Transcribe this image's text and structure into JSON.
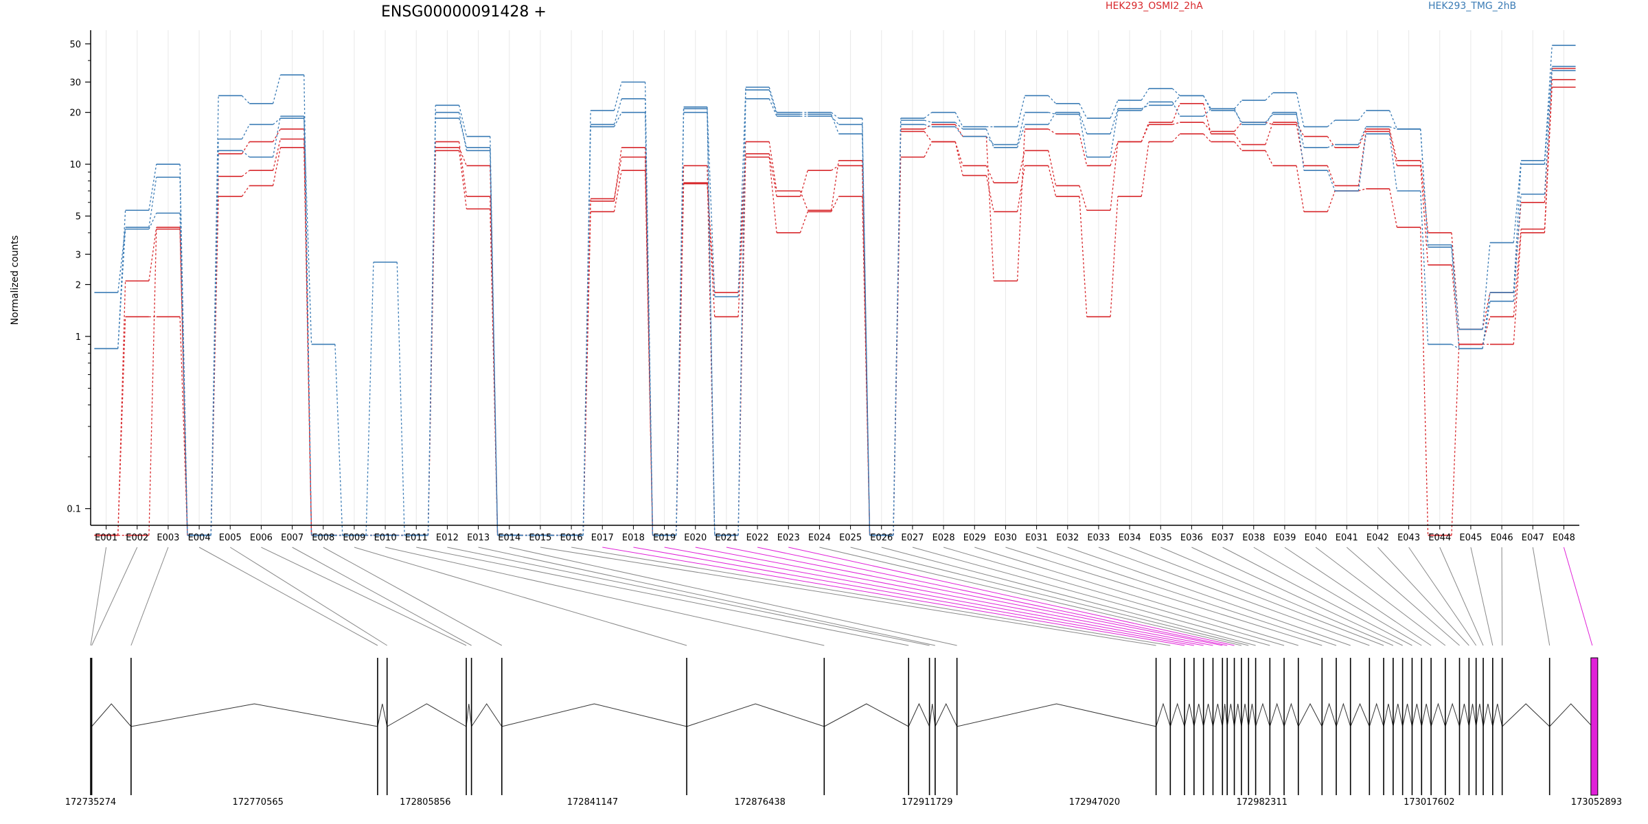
{
  "chart_data": {
    "type": "line",
    "title": "ENSG00000091428 +",
    "ylabel": "Normalized counts",
    "yscale": "log",
    "ylim": [
      0.08,
      60
    ],
    "yticks": [
      {
        "value": 0.1,
        "label": "0.1"
      },
      {
        "value": 1,
        "label": "1"
      },
      {
        "value": 2,
        "label": "2"
      },
      {
        "value": 3,
        "label": "3"
      },
      {
        "value": 5,
        "label": "5"
      },
      {
        "value": 10,
        "label": "10"
      },
      {
        "value": 20,
        "label": "20"
      },
      {
        "value": 30,
        "label": "30"
      },
      {
        "value": 50,
        "label": "50"
      }
    ],
    "minor_yticks": [
      0.2,
      0.3,
      0.4,
      0.5,
      0.6,
      0.7,
      0.8,
      0.9,
      4,
      6,
      7,
      8,
      9,
      40
    ],
    "grid": "vertical-per-exon",
    "legend": [
      {
        "label": "HEK293_OSMI2_2hA",
        "color": "#d7262a",
        "position": "top-center"
      },
      {
        "label": "HEK293_TMG_2hB",
        "color": "#3a7bb5",
        "position": "top-right"
      }
    ],
    "categories": [
      "E001",
      "E002",
      "E003",
      "E004",
      "E005",
      "E006",
      "E007",
      "E008",
      "E009",
      "E010",
      "E011",
      "E012",
      "E013",
      "E014",
      "E015",
      "E016",
      "E017",
      "E018",
      "E019",
      "E020",
      "E021",
      "E022",
      "E023",
      "E024",
      "E025",
      "E026",
      "E027",
      "E028",
      "E029",
      "E030",
      "E031",
      "E032",
      "E033",
      "E034",
      "E035",
      "E036",
      "E037",
      "E038",
      "E039",
      "E040",
      "E041",
      "E042",
      "E043",
      "E044",
      "E045",
      "E046",
      "E047",
      "E048"
    ],
    "series": [
      {
        "group": "HEK293_OSMI2_2hA",
        "color": "#d7262a",
        "values": [
          0.07,
          1.3,
          1.3,
          0.07,
          6.5,
          7.5,
          12.5,
          0.07,
          0.07,
          0.07,
          0.07,
          12,
          5.5,
          0.07,
          0.07,
          0.07,
          5.3,
          9.2,
          0.07,
          7.8,
          1.3,
          11,
          4,
          5.3,
          6.5,
          0.07,
          11,
          13.5,
          8.6,
          5.3,
          9.8,
          6.5,
          1.3,
          6.5,
          13.5,
          15,
          13.5,
          12,
          9.8,
          5.3,
          7,
          7.2,
          4.3,
          0.07,
          0.9,
          0.9,
          4,
          28
        ]
      },
      {
        "group": "HEK293_OSMI2_2hA",
        "color": "#d7262a",
        "values": [
          0.07,
          2.1,
          4.3,
          0.07,
          8.5,
          9.2,
          14,
          0.07,
          0.07,
          0.07,
          0.07,
          13.5,
          6.5,
          0.07,
          0.07,
          0.07,
          6.3,
          11,
          0.07,
          9.8,
          0.07,
          11.5,
          6.5,
          9.2,
          9.8,
          0.07,
          15.5,
          13.5,
          9.8,
          7.8,
          12,
          7.5,
          5.4,
          13.5,
          17,
          17.5,
          15.5,
          17.5,
          17,
          9.8,
          7.5,
          15.5,
          9.8,
          2.6,
          0.9,
          1.3,
          4.2,
          31
        ]
      },
      {
        "group": "HEK293_OSMI2_2hA",
        "color": "#d7262a",
        "values": [
          0.07,
          0.07,
          4.2,
          0.07,
          11.5,
          13.5,
          16,
          0.07,
          0.07,
          0.07,
          0.07,
          12.5,
          9.8,
          0.07,
          0.07,
          0.07,
          6.1,
          12.5,
          0.07,
          7.7,
          1.8,
          13.5,
          7,
          5.4,
          10.5,
          0.07,
          16,
          17,
          14.5,
          2.1,
          16,
          15,
          9.8,
          13.5,
          17.5,
          22.5,
          15,
          13,
          17.5,
          14.5,
          12.5,
          16,
          10.5,
          4,
          1.1,
          1.8,
          6,
          36
        ]
      },
      {
        "group": "HEK293_TMG_2hB",
        "color": "#3a7bb5",
        "values": [
          0.85,
          4.2,
          5.2,
          0.07,
          12,
          11,
          19,
          0.07,
          0.07,
          0.07,
          0.07,
          20,
          12,
          0.07,
          0.07,
          0.07,
          16.5,
          20,
          0.07,
          20,
          0.07,
          24,
          19,
          19,
          17,
          0.07,
          17,
          16.5,
          14.5,
          13,
          20,
          19.5,
          11,
          20.5,
          23,
          19,
          21,
          17,
          20,
          9.2,
          7,
          15,
          7,
          0.9,
          0.85,
          1.6,
          6.7,
          35
        ]
      },
      {
        "group": "HEK293_TMG_2hB",
        "color": "#3a7bb5",
        "values": [
          1.8,
          4.3,
          8.4,
          0.07,
          14,
          17,
          18.5,
          0.9,
          0.07,
          0.07,
          0.07,
          18.5,
          12.5,
          0.07,
          0.07,
          0.07,
          17,
          24,
          0.07,
          21,
          1.7,
          27,
          19.5,
          19.5,
          15,
          0.07,
          18,
          17.5,
          16,
          12.5,
          17,
          20,
          15,
          21,
          22,
          25,
          20.5,
          17.5,
          19.5,
          12.5,
          13,
          16.5,
          16,
          3.3,
          0.85,
          1.8,
          10,
          37
        ]
      },
      {
        "group": "HEK293_TMG_2hB",
        "color": "#3a7bb5",
        "values": [
          0.85,
          5.4,
          10,
          0.07,
          25,
          22.5,
          33,
          0.07,
          0.07,
          2.7,
          0.07,
          22,
          14.5,
          0.07,
          0.07,
          0.07,
          20.5,
          30,
          0.07,
          21.5,
          0.07,
          28,
          20,
          20,
          18.5,
          0.07,
          18.5,
          20,
          16.5,
          16.5,
          25,
          22.5,
          18.5,
          23.5,
          27.5,
          25,
          21,
          23.5,
          26,
          16.5,
          18,
          20.5,
          16,
          3.4,
          1.1,
          3.5,
          10.5,
          49
        ]
      }
    ],
    "genomic_axis": {
      "tick_labels": [
        "172735274",
        "172770565",
        "172805856",
        "172841147",
        "172876438",
        "172911729",
        "172947020",
        "172982311",
        "173017602",
        "173052893"
      ],
      "range": [
        172735274,
        173052893
      ]
    },
    "transcript": {
      "exon_positions": [
        172735350,
        172735600,
        172743800,
        172795800,
        172797800,
        172814500,
        172815600,
        172822000,
        172851100,
        172880300,
        172907800,
        172912200,
        172913400,
        172913700,
        172916200,
        172916500,
        172916700,
        172916900,
        172917100,
        172917300,
        172917500,
        172917700,
        172917900,
        172918100,
        172918400,
        172918700,
        172919000,
        172919300,
        172919600,
        172920100,
        172920600,
        172921100,
        172921600,
        172922100,
        172922600,
        172923100,
        172923600,
        172924100,
        172924500,
        172924900,
        172925300,
        172926000,
        172926500,
        172927500,
        172929000,
        172930500,
        172934000,
        172947500
      ],
      "exon_grid_positions": [
        172735274,
        172735500,
        172743800,
        172795800,
        172797800,
        172814500,
        172815600,
        172822000,
        172861000,
        172890000,
        172907800,
        172912200,
        172913400,
        172918000,
        172960000,
        172963000,
        172966000,
        172968000,
        172970000,
        172972000,
        172974000,
        172975000,
        172976500,
        172978000,
        172979500,
        172981000,
        172984000,
        172987000,
        172990000,
        172995000,
        172998000,
        173001000,
        173005000,
        173008000,
        173010000,
        173012000,
        173014000,
        173016000,
        173018000,
        173021000,
        173024000,
        173026000,
        173027500,
        173029000,
        173031000,
        173033000,
        173043000,
        173052000
      ],
      "highlight_exons": [
        "E017",
        "E018",
        "E019",
        "E020",
        "E021",
        "E022",
        "E023",
        "E048"
      ],
      "highlight_color": "#e020d8"
    }
  }
}
